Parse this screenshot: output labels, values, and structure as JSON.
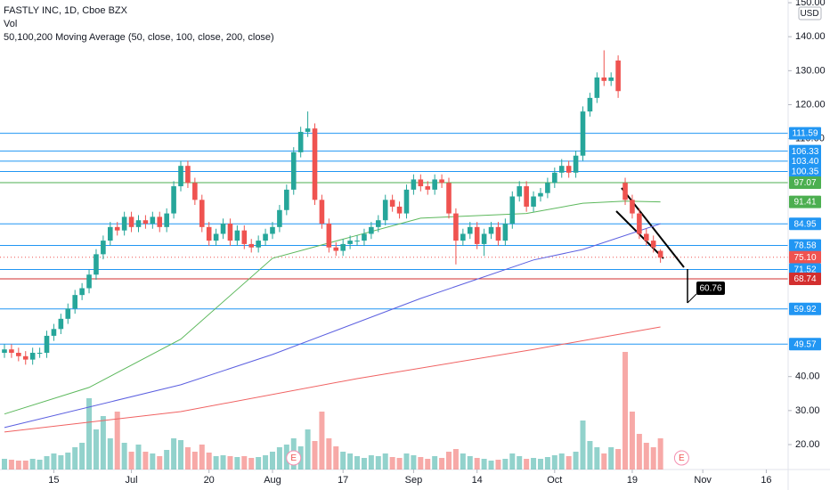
{
  "chart_data": {
    "type": "candlestick",
    "title": "FASTLY INC, 1D, Cboe BZX",
    "subtitle": "Vol",
    "indicator_label": "50,100,200 Moving Average (50, close, 100, close, 200, close)",
    "currency": "USD",
    "annotation": "60.76",
    "up_color": "#26a69a",
    "down_color": "#ef5350",
    "xlim": [
      -0.63,
      111.1
    ],
    "ylim": [
      12.66,
      150.8
    ],
    "yticks": [
      {
        "value": 150,
        "label": "150.00"
      },
      {
        "value": 140,
        "label": "140.00"
      },
      {
        "value": 130,
        "label": "130.00"
      },
      {
        "value": 120,
        "label": "120.00"
      },
      {
        "value": 110,
        "label": "110.00"
      },
      {
        "value": 40,
        "label": "40.00"
      },
      {
        "value": 30,
        "label": "30.00"
      },
      {
        "value": 20,
        "label": "20.00"
      }
    ],
    "xticks": [
      {
        "value": 7,
        "label": "15"
      },
      {
        "value": 18,
        "label": "Jul"
      },
      {
        "value": 29,
        "label": "20"
      },
      {
        "value": 38,
        "label": "Aug"
      },
      {
        "value": 48,
        "label": "17"
      },
      {
        "value": 58,
        "label": "Sep"
      },
      {
        "value": 67,
        "label": "14"
      },
      {
        "value": 78,
        "label": "Oct"
      },
      {
        "value": 89,
        "label": "19"
      },
      {
        "value": 99,
        "label": "Nov"
      },
      {
        "value": 108,
        "label": "16"
      }
    ],
    "x": [
      0,
      1,
      2,
      3,
      4,
      5,
      6,
      7,
      8,
      9,
      10,
      11,
      12,
      13,
      14,
      15,
      16,
      17,
      18,
      19,
      20,
      21,
      22,
      23,
      24,
      25,
      26,
      27,
      28,
      29,
      30,
      31,
      32,
      33,
      34,
      35,
      36,
      37,
      38,
      39,
      40,
      41,
      42,
      43,
      44,
      45,
      46,
      47,
      48,
      49,
      50,
      51,
      52,
      53,
      54,
      55,
      56,
      57,
      58,
      59,
      60,
      61,
      62,
      63,
      64,
      65,
      66,
      67,
      68,
      69,
      70,
      71,
      72,
      73,
      74,
      75,
      76,
      77,
      78,
      79,
      80,
      81,
      82,
      83,
      84,
      85,
      86,
      87,
      88,
      89,
      90,
      91,
      92,
      93
    ],
    "open": [
      47,
      48,
      47,
      46,
      45,
      47,
      47,
      52,
      54,
      57,
      60,
      64,
      66,
      70,
      76,
      80,
      84,
      83,
      87,
      84,
      86,
      85,
      87,
      84,
      88,
      96,
      102,
      97,
      92,
      84,
      80,
      82,
      85,
      80,
      83,
      79,
      78,
      80,
      82,
      84,
      89,
      95,
      106,
      112,
      113,
      92,
      85,
      78,
      77,
      79,
      80,
      80,
      82,
      84,
      86,
      92,
      90,
      88,
      95,
      98,
      96,
      95,
      98,
      97,
      88,
      80,
      82,
      84,
      79,
      82,
      84,
      80,
      85,
      93,
      96,
      90,
      93,
      94,
      97,
      100,
      102,
      100,
      105,
      118,
      122,
      128,
      127,
      133,
      97,
      92,
      88,
      82,
      80,
      77
    ],
    "high": [
      49.5,
      49.5,
      48.5,
      47.5,
      48.5,
      48.5,
      53.5,
      55.5,
      58.5,
      61.5,
      65.5,
      67.5,
      71.5,
      77.5,
      81.5,
      85.5,
      85.5,
      88.5,
      88.5,
      87.5,
      87.5,
      88.5,
      88.5,
      89.5,
      97.5,
      103.5,
      103.5,
      98.5,
      93.5,
      85.5,
      83.5,
      86.5,
      86.5,
      84.5,
      84.5,
      80.5,
      81.5,
      83.5,
      85.5,
      90.5,
      96.5,
      107.5,
      113.5,
      118,
      114.5,
      93.5,
      86.5,
      79.5,
      80.5,
      81.5,
      81.5,
      83.5,
      85.5,
      87.5,
      93.5,
      93.5,
      91.5,
      96.5,
      99.5,
      99.5,
      97.5,
      99.5,
      99.5,
      98.5,
      89.5,
      83.5,
      85.5,
      85.5,
      83.5,
      85.5,
      85.5,
      86.5,
      94.5,
      97.5,
      97.5,
      94.5,
      95.5,
      98.5,
      101.5,
      104,
      103.5,
      106.5,
      119.5,
      123.5,
      129.5,
      136,
      129.5,
      134.5,
      98.5,
      93.5,
      89.5,
      83.5,
      81.5,
      77.5
    ],
    "low": [
      45.5,
      45.5,
      44.5,
      43.5,
      43.5,
      45.5,
      45.5,
      50.5,
      52.5,
      55.5,
      58.5,
      62.5,
      64.5,
      68.5,
      74.5,
      78.5,
      81.5,
      81.5,
      82.5,
      82.5,
      83.5,
      83.5,
      82.5,
      82.5,
      86.5,
      94.5,
      95.5,
      90.5,
      82.5,
      78.5,
      78.5,
      80.5,
      78.5,
      78.5,
      77.5,
      76.5,
      76.5,
      78.5,
      80.5,
      82.5,
      87.5,
      93.5,
      104.5,
      110.5,
      90.5,
      83.5,
      76.5,
      75.5,
      75.5,
      77.5,
      78.5,
      78.5,
      80.5,
      82.5,
      84.5,
      88.5,
      86.5,
      86.5,
      93.5,
      94.5,
      93.5,
      93.5,
      95.5,
      86.5,
      73,
      78.5,
      80.5,
      77.5,
      75.5,
      80.5,
      78.5,
      78.5,
      83.5,
      91.5,
      88.5,
      88.5,
      91.5,
      92.5,
      95.5,
      98.5,
      98.5,
      98.5,
      103.5,
      116.5,
      120.5,
      125.5,
      125.5,
      122,
      90.5,
      86.5,
      80.5,
      78.5,
      76.5,
      73.5
    ],
    "close": [
      48,
      47,
      46,
      45,
      47,
      47,
      52,
      54,
      57,
      60,
      64,
      66,
      70,
      76,
      80,
      84,
      83,
      87,
      84,
      86,
      85,
      87,
      84,
      88,
      96,
      102,
      97,
      92,
      84,
      80,
      82,
      85,
      80,
      83,
      79,
      78,
      80,
      82,
      84,
      89,
      95,
      106,
      112,
      113,
      92,
      85,
      78,
      77,
      79,
      80,
      80,
      82,
      84,
      86,
      92,
      90,
      88,
      95,
      98,
      96,
      95,
      98,
      97,
      88,
      80,
      82,
      84,
      79,
      82,
      84,
      80,
      85,
      93,
      96,
      90,
      93,
      94,
      97,
      100,
      102,
      100,
      105,
      118,
      122,
      128,
      127,
      128,
      124,
      92,
      88,
      82,
      80,
      78,
      75
    ],
    "volume": [
      1.2,
      1.1,
      1.0,
      1.0,
      1.2,
      1.1,
      1.5,
      1.8,
      1.6,
      1.9,
      2.5,
      3.0,
      8.0,
      4.5,
      6.0,
      3.5,
      6.5,
      3.0,
      2.0,
      2.8,
      2.0,
      1.8,
      1.5,
      2.2,
      3.5,
      3.3,
      2.5,
      2.0,
      2.8,
      1.9,
      1.5,
      1.6,
      1.5,
      1.4,
      1.5,
      1.3,
      1.4,
      1.6,
      2.0,
      2.5,
      2.8,
      3.5,
      2.6,
      4.5,
      3.2,
      6.5,
      3.5,
      2.6,
      2.0,
      1.8,
      1.5,
      1.3,
      1.6,
      1.5,
      1.8,
      1.4,
      1.3,
      1.8,
      1.6,
      1.4,
      1.2,
      1.5,
      1.3,
      2.0,
      2.3,
      1.8,
      1.5,
      1.3,
      1.2,
      1.0,
      1.1,
      1.2,
      1.8,
      1.5,
      1.2,
      1.3,
      1.2,
      1.4,
      1.6,
      1.8,
      1.5,
      2.0,
      5.5,
      3.2,
      2.5,
      1.8,
      2.5,
      2.3,
      13.2,
      6.5,
      4.0,
      3.0,
      2.5,
      3.5
    ],
    "moving_averages": [
      {
        "color": "#5cb85c",
        "x": [
          0,
          12,
          25,
          38,
          49,
          59,
          74,
          82,
          88,
          93
        ],
        "values": [
          29,
          36.8,
          51,
          74.8,
          81,
          86.6,
          88,
          91,
          91.6,
          91.41
        ]
      },
      {
        "color": "#5b5fe0",
        "x": [
          0,
          25,
          38,
          59,
          75,
          82,
          93
        ],
        "values": [
          25,
          37.6,
          46.5,
          63,
          74.3,
          77.4,
          84.95
        ]
      },
      {
        "color": "#f06262",
        "x": [
          0,
          25,
          50,
          75,
          93
        ],
        "values": [
          23.7,
          29.7,
          39.4,
          48,
          54.6
        ]
      }
    ],
    "levels": [
      {
        "value": 111.59,
        "label": "111.59",
        "color": "#2196f3",
        "line": true
      },
      {
        "value": 106.33,
        "label": "106.33",
        "color": "#2196f3",
        "line": true
      },
      {
        "value": 103.4,
        "label": "103.40",
        "color": "#2196f3",
        "line": true
      },
      {
        "value": 100.35,
        "label": "100.35",
        "color": "#2196f3",
        "line": true
      },
      {
        "value": 97.07,
        "label": "97.07",
        "color": "#4caf50",
        "line": true
      },
      {
        "value": 91.41,
        "label": "91.41",
        "color": "#4caf50",
        "line": false
      },
      {
        "value": 84.95,
        "label": "84.95",
        "color": "#2196f3",
        "line": true
      },
      {
        "value": 78.58,
        "label": "78.58",
        "color": "#2196f3",
        "line": true
      },
      {
        "value": 75.1,
        "label": "75.10",
        "color": "#ef5350",
        "line": "dotted"
      },
      {
        "value": 71.52,
        "label": "71.52",
        "color": "#2196f3",
        "line": true
      },
      {
        "value": 68.74,
        "label": "68.74",
        "color": "#d32f2f",
        "line": true
      },
      {
        "value": 59.92,
        "label": "59.92",
        "color": "#2196f3",
        "line": true
      },
      {
        "value": 49.57,
        "label": "49.57",
        "color": "#2196f3",
        "line": true
      }
    ],
    "events": [
      {
        "x": 41,
        "label": "E"
      },
      {
        "x": 96,
        "label": "E"
      }
    ]
  }
}
